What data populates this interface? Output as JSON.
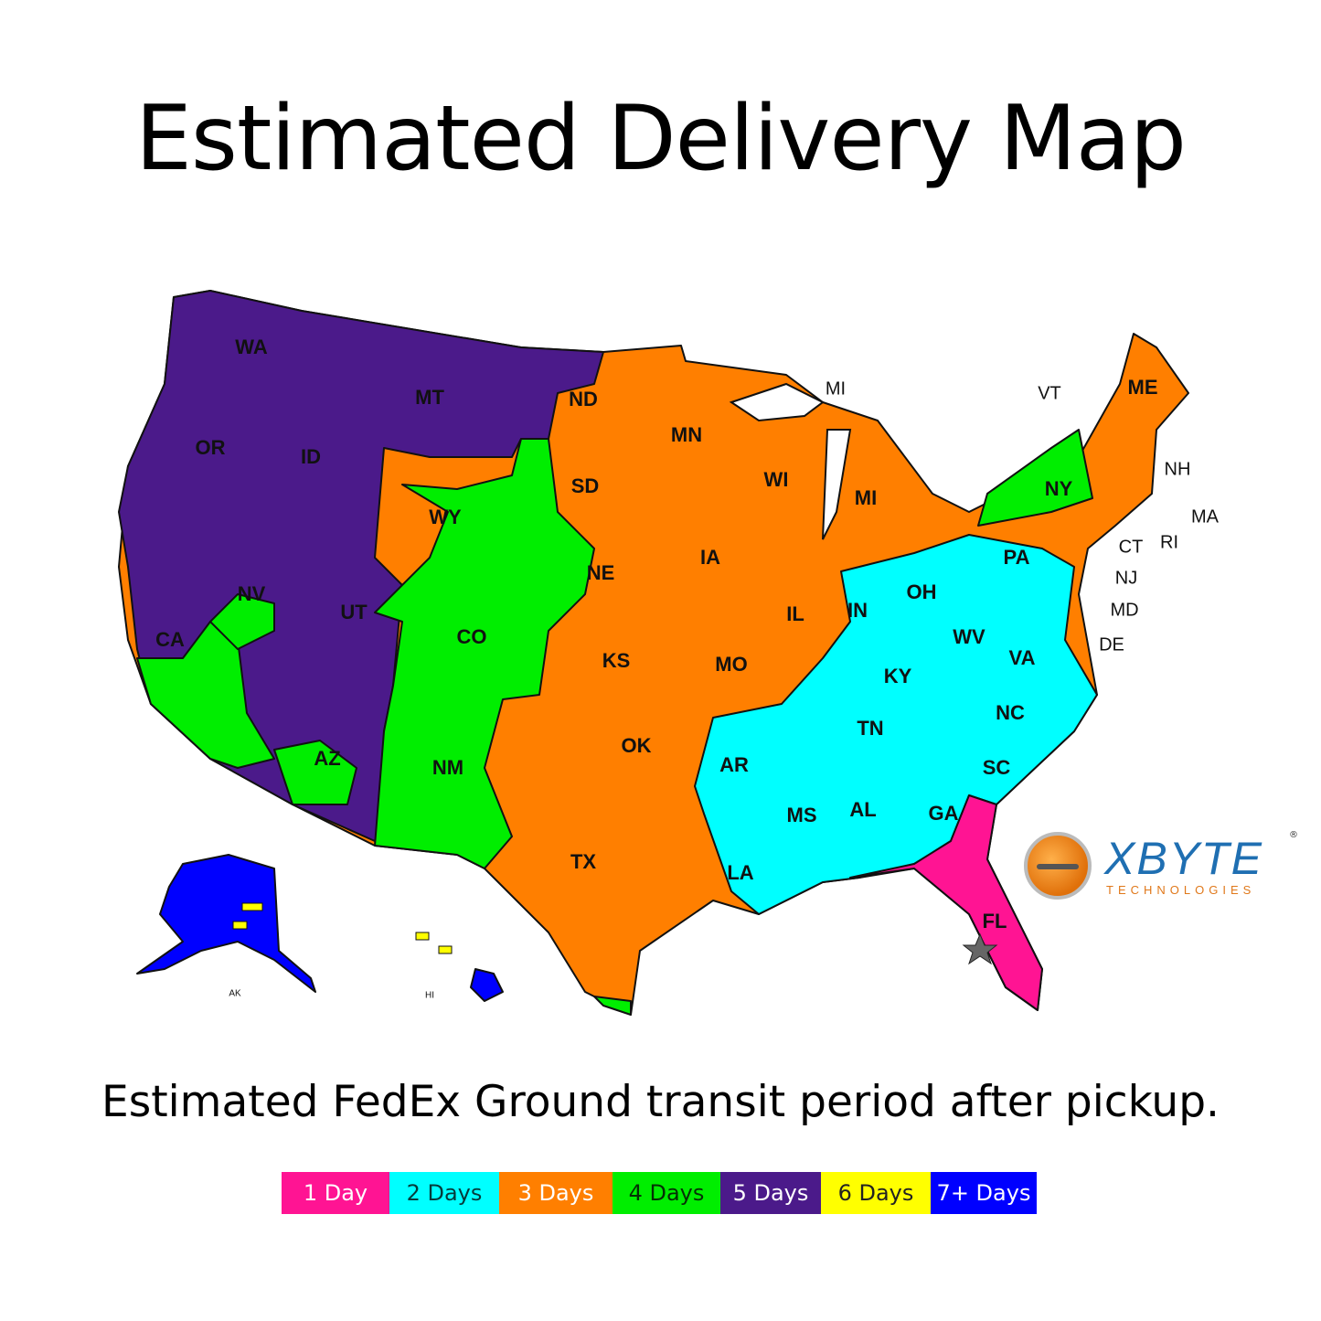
{
  "title": "Estimated Delivery Map",
  "subtitle": "Estimated FedEx Ground transit period after pickup.",
  "colors": {
    "1 Day": "#ff1493",
    "2 Days": "#00ffff",
    "3 Days": "#ff7f00",
    "4 Days": "#00ee00",
    "5 Days": "#4b1a8a",
    "6 Days": "#ffff00",
    "7+ Days": "#0000ff"
  },
  "legend": [
    {
      "label": "1 Day",
      "color": "#ff1493",
      "text_color": "#ffffff"
    },
    {
      "label": "2 Days",
      "color": "#00ffff",
      "text_color": "#063b3b"
    },
    {
      "label": "3 Days",
      "color": "#ff7f00",
      "text_color": "#ffffff"
    },
    {
      "label": "4 Days",
      "color": "#00ee00",
      "text_color": "#053005"
    },
    {
      "label": "5 Days",
      "color": "#4b1a8a",
      "text_color": "#ffffff"
    },
    {
      "label": "6 Days",
      "color": "#ffff00",
      "text_color": "#222222"
    },
    {
      "label": "7+ Days",
      "color": "#0000ff",
      "text_color": "#ffffff"
    }
  ],
  "map": {
    "state_labels": [
      "WA",
      "OR",
      "CA",
      "ID",
      "NV",
      "MT",
      "WY",
      "UT",
      "AZ",
      "CO",
      "NM",
      "ND",
      "SD",
      "NE",
      "KS",
      "OK",
      "TX",
      "MN",
      "IA",
      "MO",
      "AR",
      "LA",
      "WI",
      "IL",
      "MI",
      "IN",
      "OH",
      "KY",
      "TN",
      "MS",
      "AL",
      "GA",
      "FL",
      "SC",
      "NC",
      "VA",
      "WV",
      "PA",
      "NY",
      "ME"
    ],
    "outside_labels": [
      "MI",
      "VT",
      "NH",
      "MA",
      "RI",
      "CT",
      "NJ",
      "MD",
      "DE"
    ],
    "small_labels": [
      "AK",
      "HI"
    ],
    "origin_marker": "star-icon"
  },
  "logo": {
    "name": "XBYTE",
    "sub": "TECHNOLOGIES",
    "reg": "®"
  }
}
